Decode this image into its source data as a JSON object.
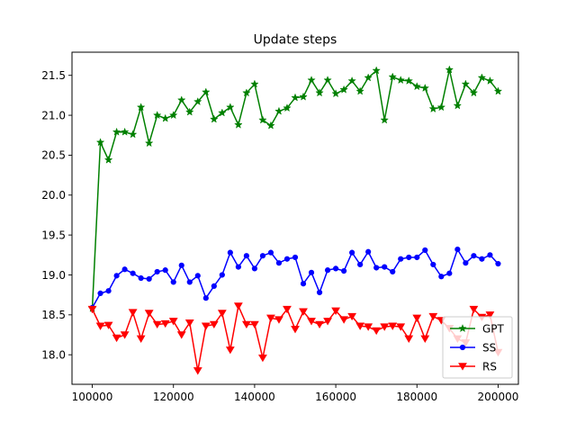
{
  "chart_data": {
    "type": "line",
    "title": "Update steps",
    "xlabel": "",
    "ylabel": "",
    "xlim": [
      95000,
      205000
    ],
    "ylim": [
      17.63,
      21.79
    ],
    "xticks": [
      100000,
      120000,
      140000,
      160000,
      180000,
      200000
    ],
    "yticks": [
      18.0,
      18.5,
      19.0,
      19.5,
      20.0,
      20.5,
      21.0,
      21.5
    ],
    "xtick_labels": [
      "100000",
      "120000",
      "140000",
      "160000",
      "180000",
      "200000"
    ],
    "ytick_labels": [
      "18.0",
      "18.5",
      "19.0",
      "19.5",
      "20.0",
      "20.5",
      "21.0",
      "21.5"
    ],
    "grid": false,
    "legend_position": "lower-right",
    "x": [
      100000,
      102000,
      104000,
      106000,
      108000,
      110000,
      112000,
      114000,
      116000,
      118000,
      120000,
      122000,
      124000,
      126000,
      128000,
      130000,
      132000,
      134000,
      136000,
      138000,
      140000,
      142000,
      144000,
      146000,
      148000,
      150000,
      152000,
      154000,
      156000,
      158000,
      160000,
      162000,
      164000,
      166000,
      168000,
      170000,
      172000,
      174000,
      176000,
      178000,
      180000,
      182000,
      184000,
      186000,
      188000,
      190000,
      192000,
      194000,
      196000,
      198000,
      200000
    ],
    "series": [
      {
        "name": "GPT",
        "color": "#008000",
        "marker": "star",
        "values": [
          18.58,
          20.66,
          20.44,
          20.79,
          20.79,
          20.76,
          21.1,
          20.65,
          21.0,
          20.96,
          21.0,
          21.19,
          21.04,
          21.17,
          21.29,
          20.95,
          21.03,
          21.1,
          20.88,
          21.28,
          21.39,
          20.94,
          20.87,
          21.05,
          21.09,
          21.22,
          21.23,
          21.44,
          21.28,
          21.44,
          21.27,
          21.32,
          21.43,
          21.3,
          21.47,
          21.56,
          20.94,
          21.48,
          21.44,
          21.43,
          21.36,
          21.34,
          21.08,
          21.1,
          21.57,
          21.12,
          21.39,
          21.28,
          21.47,
          21.43,
          21.3
        ]
      },
      {
        "name": "SS",
        "color": "#0000ff",
        "marker": "circle",
        "values": [
          18.59,
          18.77,
          18.8,
          18.99,
          19.07,
          19.02,
          18.96,
          18.95,
          19.04,
          19.06,
          18.91,
          19.12,
          18.91,
          18.99,
          18.71,
          18.86,
          19.0,
          19.28,
          19.1,
          19.24,
          19.08,
          19.24,
          19.28,
          19.15,
          19.2,
          19.22,
          18.89,
          19.03,
          18.78,
          19.06,
          19.08,
          19.05,
          19.28,
          19.13,
          19.29,
          19.09,
          19.1,
          19.04,
          19.2,
          19.22,
          19.22,
          19.31,
          19.13,
          18.98,
          19.02,
          19.32,
          19.15,
          19.24,
          19.2,
          19.25,
          19.14
        ]
      },
      {
        "name": "RS",
        "color": "#ff0000",
        "marker": "triangle-down",
        "values": [
          18.57,
          18.36,
          18.37,
          18.21,
          18.25,
          18.53,
          18.2,
          18.52,
          18.38,
          18.39,
          18.42,
          18.25,
          18.4,
          17.8,
          18.36,
          18.38,
          18.52,
          18.06,
          18.61,
          18.38,
          18.38,
          17.96,
          18.46,
          18.44,
          18.57,
          18.32,
          18.54,
          18.42,
          18.38,
          18.42,
          18.55,
          18.44,
          18.48,
          18.36,
          18.35,
          18.3,
          18.35,
          18.36,
          18.35,
          18.2,
          18.46,
          18.2,
          18.48,
          18.43,
          18.33,
          18.2,
          18.15,
          18.57,
          18.47,
          18.5,
          18.03
        ]
      }
    ]
  }
}
